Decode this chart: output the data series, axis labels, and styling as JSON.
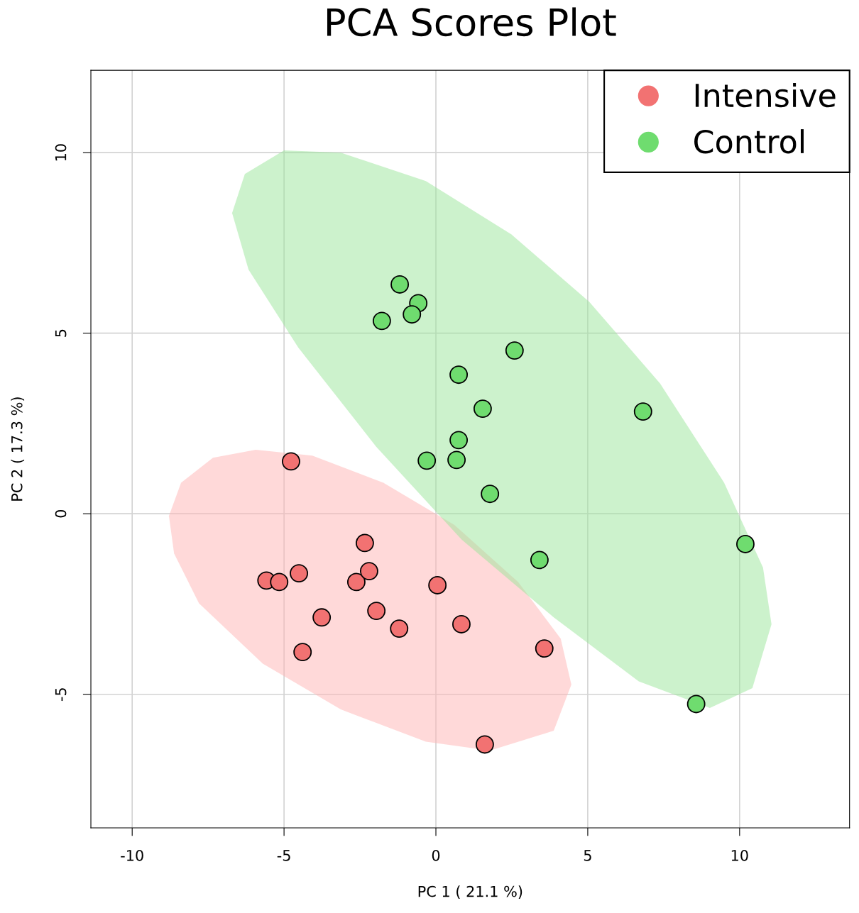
{
  "chart_data": {
    "type": "scatter",
    "title": "PCA Scores Plot",
    "xlabel": "PC 1 ( 21.1 %)",
    "ylabel": "PC 2 ( 17.3 %)",
    "xlim": [
      -11.36,
      13.62
    ],
    "ylim": [
      -8.7,
      12.28
    ],
    "xticks": [
      -10,
      -5,
      0,
      5,
      10
    ],
    "yticks": [
      -5,
      0,
      5,
      10
    ],
    "grid": true,
    "legend": "top right",
    "marker": "circle",
    "series": [
      {
        "type": "area",
        "marker": "none",
        "color": "#ffb3b3",
        "x": [
          -8.79,
          -8.39,
          -7.34,
          -5.93,
          -4.07,
          -1.73,
          0.61,
          2.71,
          4.11,
          4.46,
          3.88,
          1.78,
          -0.33,
          -3.13,
          -5.7,
          -7.8,
          -8.62
        ],
        "values": [
          -0.06,
          0.86,
          1.55,
          1.77,
          1.61,
          0.86,
          -0.31,
          -1.89,
          -3.46,
          -4.73,
          -6.01,
          -6.56,
          -6.31,
          -5.42,
          -4.15,
          -2.48,
          -1.1
        ]
      },
      {
        "type": "area",
        "marker": "none",
        "color": "#99e699",
        "x": [
          -6.71,
          -6.29,
          -5.0,
          -3.13,
          -0.33,
          2.48,
          5.05,
          7.38,
          9.49,
          10.77,
          11.05,
          10.42,
          9.02,
          6.68,
          3.88,
          0.84,
          -1.96,
          -4.53,
          -6.17
        ],
        "values": [
          8.33,
          9.41,
          10.06,
          10.0,
          9.21,
          7.74,
          5.87,
          3.61,
          0.86,
          -1.49,
          -3.06,
          -4.83,
          -5.38,
          -4.64,
          -2.87,
          -0.71,
          1.85,
          4.6,
          6.76
        ]
      },
      {
        "name": "Intensive",
        "color": "#f27272",
        "x": [
          -5.58,
          -5.16,
          -4.51,
          -4.77,
          -3.76,
          -4.39,
          -2.34,
          -2.62,
          -2.2,
          -1.96,
          -1.21,
          0.05,
          0.84,
          3.57,
          1.61
        ],
        "values": [
          -1.85,
          -1.89,
          -1.65,
          1.45,
          -2.87,
          -3.83,
          -0.81,
          -1.89,
          -1.59,
          -2.69,
          -3.18,
          -1.98,
          -3.06,
          -3.73,
          -6.39
        ]
      },
      {
        "name": "Control",
        "color": "#6fdc6f",
        "x": [
          -1.19,
          -0.58,
          -0.79,
          -1.78,
          2.59,
          0.75,
          1.54,
          6.82,
          0.75,
          -0.3,
          0.68,
          1.78,
          3.41,
          10.19,
          8.57
        ],
        "values": [
          6.35,
          5.83,
          5.52,
          5.34,
          4.52,
          3.85,
          2.91,
          2.83,
          2.04,
          1.47,
          1.49,
          0.55,
          -1.28,
          -0.84,
          -5.27
        ]
      }
    ]
  }
}
